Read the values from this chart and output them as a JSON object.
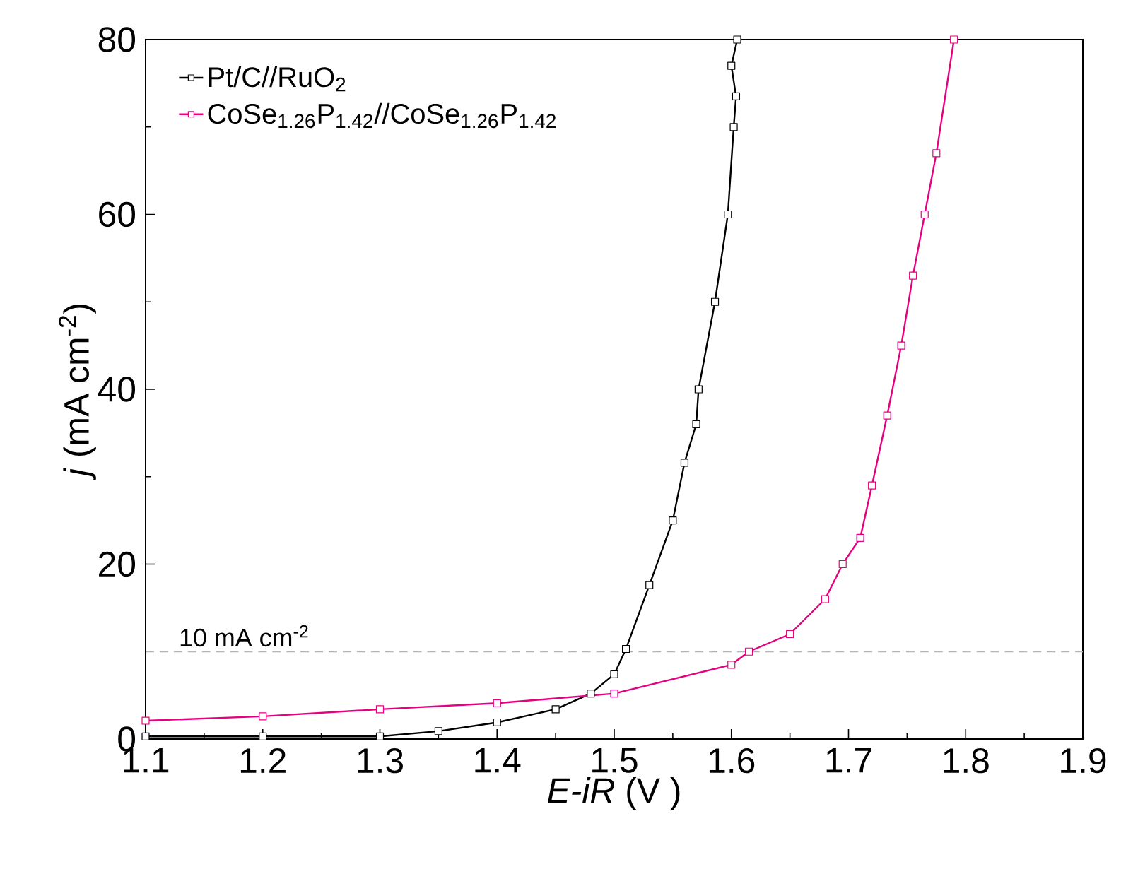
{
  "chart_data": {
    "type": "line",
    "xlabel": "*E-iR* (V )",
    "ylabel": "*j* (mA cm$^{-2}$)",
    "xlim": [
      1.1,
      1.9
    ],
    "ylim": [
      0,
      80
    ],
    "xticks": [
      1.1,
      1.2,
      1.3,
      1.4,
      1.5,
      1.6,
      1.7,
      1.8,
      1.9
    ],
    "yticks": [
      0,
      20,
      40,
      60,
      80
    ],
    "legend": "top left",
    "marker": "square",
    "line_style": "solid",
    "grid": false,
    "ref_lines": [
      {
        "axis": "y",
        "value": 10,
        "label": "10 mA cm$^{-2}$",
        "color": "#b4b4b4",
        "line_style": "dashed"
      }
    ],
    "series": [
      {
        "name": "Pt/C//RuO$_{2}$",
        "color": "#000000",
        "x": [
          1.1,
          1.2,
          1.3,
          1.35,
          1.4,
          1.45,
          1.48,
          1.5,
          1.51,
          1.53,
          1.55,
          1.56,
          1.57,
          1.572,
          1.586,
          1.597,
          1.602,
          1.604,
          1.6,
          1.605
        ],
        "values": [
          0.3,
          0.3,
          0.3,
          0.9,
          1.9,
          3.4,
          5.2,
          7.4,
          10.3,
          17.6,
          25,
          31.6,
          36,
          40,
          50,
          60,
          70,
          73.5,
          77,
          80
        ]
      },
      {
        "name": "CoSe$_{1.26}$P$_{1.42}$//CoSe$_{1.26}$P$_{1.42}$",
        "color": "#e6007e",
        "x": [
          1.1,
          1.2,
          1.3,
          1.4,
          1.5,
          1.6,
          1.615,
          1.65,
          1.68,
          1.695,
          1.71,
          1.72,
          1.733,
          1.745,
          1.755,
          1.765,
          1.775,
          1.79
        ],
        "values": [
          2.1,
          2.6,
          3.4,
          4.1,
          5.2,
          8.5,
          10,
          12,
          16,
          20,
          23,
          29,
          37,
          45,
          53,
          60,
          67,
          80
        ]
      }
    ]
  }
}
